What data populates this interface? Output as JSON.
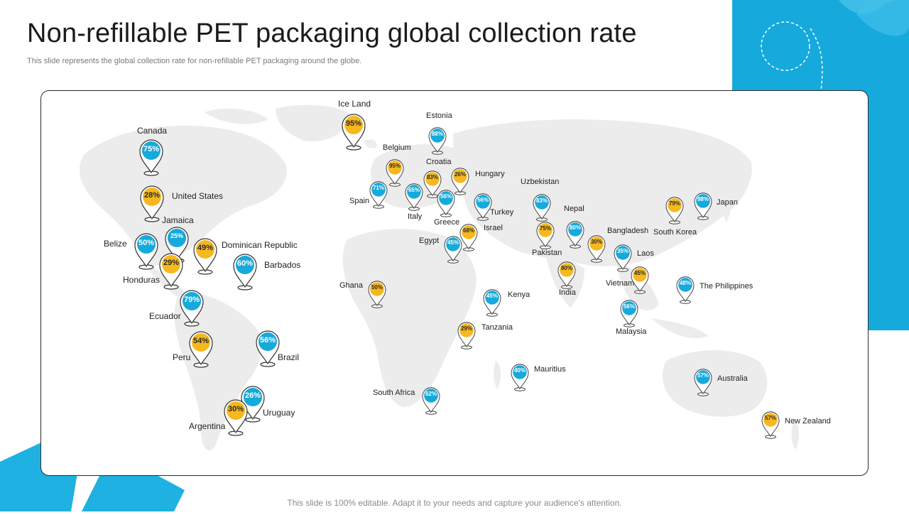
{
  "title": "Non-refillable PET packaging global collection rate",
  "subtitle": "This slide represents the global collection rate for non-refillable PET packaging around the globe.",
  "footer": "This slide is 100% editable. Adapt it to your needs and capture your audience's attention.",
  "colors": {
    "blue": "#16a9dc",
    "yellow": "#f6b81f",
    "land": "#ececec"
  },
  "countries": [
    {
      "name": "Canada",
      "value": "75%",
      "color": "blue"
    },
    {
      "name": "United States",
      "value": "28%",
      "color": "yellow"
    },
    {
      "name": "Jamaica",
      "value": "25%",
      "color": "blue"
    },
    {
      "name": "Belize",
      "value": "50%",
      "color": "blue"
    },
    {
      "name": "Dominican Republic",
      "value": "49%",
      "color": "yellow"
    },
    {
      "name": "Honduras",
      "value": "29%",
      "color": "yellow"
    },
    {
      "name": "Barbados",
      "value": "60%",
      "color": "blue"
    },
    {
      "name": "Ecuador",
      "value": "79%",
      "color": "blue"
    },
    {
      "name": "Peru",
      "value": "54%",
      "color": "yellow"
    },
    {
      "name": "Brazil",
      "value": "56%",
      "color": "blue"
    },
    {
      "name": "Uruguay",
      "value": "26%",
      "color": "blue"
    },
    {
      "name": "Argentina",
      "value": "30%",
      "color": "yellow"
    },
    {
      "name": "Ice Land",
      "value": "95%",
      "color": "yellow"
    },
    {
      "name": "Estonia",
      "value": "88%",
      "color": "blue"
    },
    {
      "name": "Belgium",
      "value": "95%",
      "color": "yellow"
    },
    {
      "name": "Croatia",
      "value": "83%",
      "color": "yellow"
    },
    {
      "name": "Hungary",
      "value": "26%",
      "color": "yellow"
    },
    {
      "name": "Spain",
      "value": "71%",
      "color": "blue"
    },
    {
      "name": "Italy",
      "value": "65%",
      "color": "blue"
    },
    {
      "name": "Greece",
      "value": "56%",
      "color": "blue"
    },
    {
      "name": "Turkey",
      "value": "56%",
      "color": "blue"
    },
    {
      "name": "Israel",
      "value": "68%",
      "color": "yellow"
    },
    {
      "name": "Egypt",
      "value": "45%",
      "color": "blue"
    },
    {
      "name": "Uzbekistan",
      "value": "83%",
      "color": "blue"
    },
    {
      "name": "Nepal",
      "value": "80%",
      "color": "blue"
    },
    {
      "name": "Pakistan",
      "value": "75%",
      "color": "yellow"
    },
    {
      "name": "Bangladesh",
      "value": "30%",
      "color": "yellow"
    },
    {
      "name": "India",
      "value": "80%",
      "color": "yellow"
    },
    {
      "name": "Laos",
      "value": "35%",
      "color": "blue"
    },
    {
      "name": "Vietnam",
      "value": "45%",
      "color": "yellow"
    },
    {
      "name": "South Korea",
      "value": "79%",
      "color": "yellow"
    },
    {
      "name": "Japan",
      "value": "98%",
      "color": "blue"
    },
    {
      "name": "The Philippines",
      "value": "48%",
      "color": "blue"
    },
    {
      "name": "Malaysia",
      "value": "56%",
      "color": "blue"
    },
    {
      "name": "Ghana",
      "value": "50%",
      "color": "yellow"
    },
    {
      "name": "Kenya",
      "value": "45%",
      "color": "blue"
    },
    {
      "name": "Tanzania",
      "value": "29%",
      "color": "yellow"
    },
    {
      "name": "Mauritius",
      "value": "40%",
      "color": "blue"
    },
    {
      "name": "South Africa",
      "value": "62%",
      "color": "blue"
    },
    {
      "name": "Australia",
      "value": "57%",
      "color": "blue"
    },
    {
      "name": "New Zealand",
      "value": "57%",
      "color": "yellow"
    }
  ]
}
